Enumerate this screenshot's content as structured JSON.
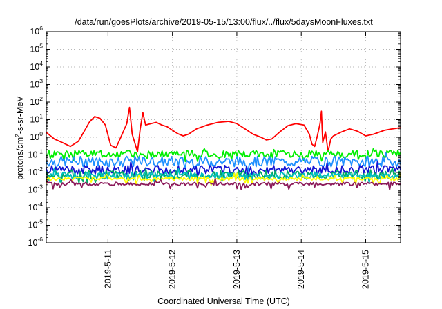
{
  "chart_data": {
    "type": "line",
    "title": "/data/run/goesPlots/archive/2019-05-15/13:00/flux/../flux/5daysMoonFluxes.txt",
    "xlabel": "Coordinated Universal Time (UTC)",
    "ylabel": {
      "main": "protons/cm",
      "sup": "2",
      "rest": "-s-sr-MeV"
    },
    "x_range": [
      "2019-05-10 01:00",
      "2019-05-15 13:00"
    ],
    "ylim": [
      1e-06,
      1000000.0
    ],
    "yscale": "log",
    "grid": true,
    "y_ticks": [
      {
        "base": "10",
        "exp": "-6",
        "value": 1e-06
      },
      {
        "base": "10",
        "exp": "-5",
        "value": 1e-05
      },
      {
        "base": "10",
        "exp": "-4",
        "value": 0.0001
      },
      {
        "base": "10",
        "exp": "-3",
        "value": 0.001
      },
      {
        "base": "10",
        "exp": "-2",
        "value": 0.01
      },
      {
        "base": "10",
        "exp": "-1",
        "value": 0.1
      },
      {
        "base": "10",
        "exp": "0",
        "value": 1
      },
      {
        "base": "10",
        "exp": "1",
        "value": 10
      },
      {
        "base": "10",
        "exp": "2",
        "value": 100
      },
      {
        "base": "10",
        "exp": "3",
        "value": 1000
      },
      {
        "base": "10",
        "exp": "4",
        "value": 10000
      },
      {
        "base": "10",
        "exp": "5",
        "value": 100000
      },
      {
        "base": "10",
        "exp": "6",
        "value": 1000000
      }
    ],
    "x_ticks": [
      {
        "label": "2019-5-11",
        "value": "2019-05-11"
      },
      {
        "label": "2019-5-12",
        "value": "2019-05-12"
      },
      {
        "label": "2019-5-13",
        "value": "2019-05-13"
      },
      {
        "label": "2019-5-14",
        "value": "2019-05-14"
      },
      {
        "label": "2019-5-15",
        "value": "2019-05-15"
      }
    ],
    "series": [
      {
        "color": "#ff0000",
        "values": [
          [
            "2019-05-10 01:00",
            1.9
          ],
          [
            "2019-05-10 04:00",
            0.8
          ],
          [
            "2019-05-10 07:00",
            0.5
          ],
          [
            "2019-05-10 10:00",
            0.3
          ],
          [
            "2019-05-10 13:00",
            0.6
          ],
          [
            "2019-05-10 15:00",
            2
          ],
          [
            "2019-05-10 17:00",
            7
          ],
          [
            "2019-05-10 19:00",
            15
          ],
          [
            "2019-05-10 21:00",
            12
          ],
          [
            "2019-05-10 23:00",
            5
          ],
          [
            "2019-05-11 01:00",
            0.35
          ],
          [
            "2019-05-11 03:00",
            0.25
          ],
          [
            "2019-05-11 05:00",
            1.2
          ],
          [
            "2019-05-11 07:00",
            6
          ],
          [
            "2019-05-11 08:00",
            50
          ],
          [
            "2019-05-11 09:00",
            1.5
          ],
          [
            "2019-05-11 11:00",
            0.15
          ],
          [
            "2019-05-11 12:00",
            3
          ],
          [
            "2019-05-11 13:00",
            25
          ],
          [
            "2019-05-11 14:00",
            5
          ],
          [
            "2019-05-11 16:00",
            6
          ],
          [
            "2019-05-11 18:00",
            7
          ],
          [
            "2019-05-11 20:00",
            5
          ],
          [
            "2019-05-11 22:00",
            4
          ],
          [
            "2019-05-12 00:00",
            2.5
          ],
          [
            "2019-05-12 02:00",
            1.6
          ],
          [
            "2019-05-12 04:00",
            1.2
          ],
          [
            "2019-05-12 06:00",
            1.5
          ],
          [
            "2019-05-12 09:00",
            3
          ],
          [
            "2019-05-12 13:00",
            5
          ],
          [
            "2019-05-12 17:00",
            7
          ],
          [
            "2019-05-12 21:00",
            8
          ],
          [
            "2019-05-13 00:00",
            6
          ],
          [
            "2019-05-13 03:00",
            3
          ],
          [
            "2019-05-13 06:00",
            1.5
          ],
          [
            "2019-05-13 09:00",
            1
          ],
          [
            "2019-05-13 11:00",
            0.7
          ],
          [
            "2019-05-13 13:00",
            0.8
          ],
          [
            "2019-05-13 16:00",
            2
          ],
          [
            "2019-05-13 19:00",
            4.5
          ],
          [
            "2019-05-13 22:00",
            6
          ],
          [
            "2019-05-14 01:00",
            5
          ],
          [
            "2019-05-14 03:00",
            1.5
          ],
          [
            "2019-05-14 04:00",
            0.4
          ],
          [
            "2019-05-14 05:00",
            0.3
          ],
          [
            "2019-05-14 06:00",
            1.2
          ],
          [
            "2019-05-14 07:00",
            6
          ],
          [
            "2019-05-14 07:30",
            30
          ],
          [
            "2019-05-14 08:00",
            0.5
          ],
          [
            "2019-05-14 09:00",
            2
          ],
          [
            "2019-05-14 10:00",
            0.15
          ],
          [
            "2019-05-14 11:00",
            0.8
          ],
          [
            "2019-05-14 12:00",
            1.2
          ],
          [
            "2019-05-14 15:00",
            2
          ],
          [
            "2019-05-14 18:00",
            3
          ],
          [
            "2019-05-14 21:00",
            2.2
          ],
          [
            "2019-05-15 00:00",
            1.2
          ],
          [
            "2019-05-15 03:00",
            1.5
          ],
          [
            "2019-05-15 07:00",
            2.5
          ],
          [
            "2019-05-15 10:00",
            3
          ],
          [
            "2019-05-15 13:00",
            3.5
          ]
        ]
      },
      {
        "color": "#00ee00",
        "base": 0.12,
        "noise": 0.4,
        "seed": 3
      },
      {
        "color": "#1e90ff",
        "base": 0.045,
        "noise": 0.6,
        "seed": 7
      },
      {
        "color": "#1414d2",
        "base": 0.015,
        "noise": 0.5,
        "seed": 11
      },
      {
        "color": "#00aa66",
        "base": 0.008,
        "noise": 0.5,
        "seed": 17
      },
      {
        "color": "#00bfbf",
        "base": 0.007,
        "noise": 0.4,
        "seed": 21
      },
      {
        "color": "#ffff00",
        "base": 0.0045,
        "noise": 0.2,
        "seed": 29
      },
      {
        "color": "#8b1a5a",
        "base": 0.0023,
        "noise": 0.18,
        "seed": 37
      }
    ]
  }
}
